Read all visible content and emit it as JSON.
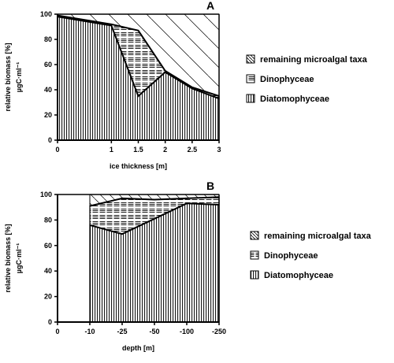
{
  "chart_data": [
    {
      "type": "area",
      "panel_label": "A",
      "xlabel": "ice thickness [m]",
      "ylabel_line1": "relative biomass [%]",
      "ylabel_line2": "µgC·ml⁻¹",
      "x": [
        0,
        1,
        1.5,
        2,
        2.5,
        3
      ],
      "x_tick_labels": [
        "0",
        "1",
        "1.5",
        "2",
        "2.5",
        "3"
      ],
      "y_tick_labels": [
        "0",
        "20",
        "40",
        "60",
        "80",
        "100"
      ],
      "xlim": [
        0,
        3
      ],
      "ylim": [
        0,
        100
      ],
      "series": [
        {
          "name": "Diatomophyceae",
          "cumulative_top": [
            98,
            91,
            35,
            54,
            41,
            33
          ]
        },
        {
          "name": "Dinophyceae",
          "cumulative_top": [
            99,
            92,
            87,
            55,
            42,
            35
          ]
        },
        {
          "name": "remaining microalgal taxa",
          "cumulative_top": [
            100,
            100,
            100,
            100,
            100,
            100
          ]
        }
      ],
      "legend": [
        "remaining microalgal taxa",
        "Dinophyceae",
        "Diatomophyceae"
      ],
      "legend_position": "right"
    },
    {
      "type": "area",
      "panel_label": "B",
      "xlabel": "depth [m]",
      "ylabel_line1": "relative biomass [%]",
      "ylabel_line2": "µgC·ml⁻¹",
      "x_tick_labels": [
        "0",
        "-10",
        "-25",
        "-50",
        "-100",
        "-250"
      ],
      "y_tick_labels": [
        "0",
        "20",
        "40",
        "60",
        "80",
        "100"
      ],
      "data_categories": [
        "-10",
        "-25",
        "-50",
        "-100",
        "-250"
      ],
      "ylim": [
        0,
        100
      ],
      "series": [
        {
          "name": "Diatomophyceae",
          "cumulative_top": [
            76,
            69,
            81,
            93,
            92
          ]
        },
        {
          "name": "Dinophyceae",
          "cumulative_top": [
            91,
            97,
            96,
            97,
            98
          ]
        },
        {
          "name": "remaining microalgal taxa",
          "cumulative_top": [
            100,
            100,
            100,
            100,
            100
          ]
        }
      ],
      "legend": [
        "remaining microalgal taxa",
        "Dinophyceae",
        "Diatomophyceae"
      ],
      "legend_position": "right"
    }
  ]
}
